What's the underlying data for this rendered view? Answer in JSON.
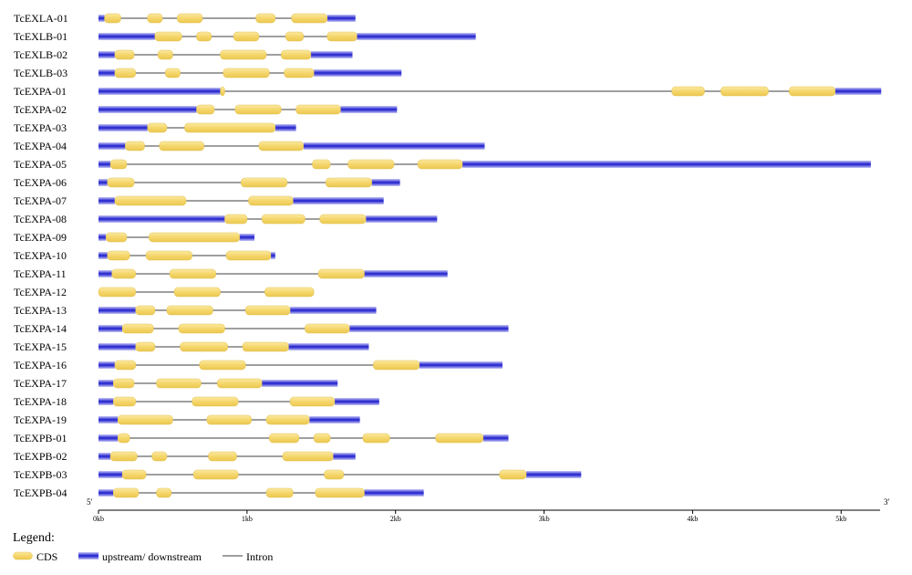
{
  "axis": {
    "five_prime": "5'",
    "three_prime": "3'",
    "max_kb": 5.25,
    "ticks": [
      {
        "value": 0,
        "label": "0kb"
      },
      {
        "value": 1,
        "label": "1kb"
      },
      {
        "value": 2,
        "label": "2kb"
      },
      {
        "value": 3,
        "label": "3kb"
      },
      {
        "value": 4,
        "label": "4kb"
      },
      {
        "value": 5,
        "label": "5kb"
      }
    ]
  },
  "colors": {
    "cds": "#f5d66b",
    "cds_edge": "#e3c24e",
    "utr_dark": "#2a2ad0",
    "utr_light": "#c8c8f7",
    "intron": "#666666"
  },
  "genes": [
    {
      "name": "TcEXLA-01",
      "length": 1.73,
      "cds": [
        [
          0.04,
          0.15
        ],
        [
          0.33,
          0.43
        ],
        [
          0.53,
          0.7
        ],
        [
          1.06,
          1.19
        ],
        [
          1.3,
          1.54
        ]
      ]
    },
    {
      "name": "TcEXLB-01",
      "length": 2.54,
      "cds": [
        [
          0.38,
          0.56
        ],
        [
          0.66,
          0.76
        ],
        [
          0.91,
          1.08
        ],
        [
          1.26,
          1.38
        ],
        [
          1.54,
          1.74
        ]
      ]
    },
    {
      "name": "TcEXLB-02",
      "length": 1.71,
      "cds": [
        [
          0.11,
          0.24
        ],
        [
          0.4,
          0.5
        ],
        [
          0.82,
          1.13
        ],
        [
          1.23,
          1.43
        ]
      ]
    },
    {
      "name": "TcEXLB-03",
      "length": 2.04,
      "cds": [
        [
          0.11,
          0.25
        ],
        [
          0.45,
          0.55
        ],
        [
          0.84,
          1.15
        ],
        [
          1.25,
          1.45
        ]
      ]
    },
    {
      "name": "TcEXPA-01",
      "length": 5.27,
      "cds": [
        [
          0.82,
          0.85
        ],
        [
          3.86,
          4.08
        ],
        [
          4.19,
          4.51
        ],
        [
          4.65,
          4.96
        ]
      ]
    },
    {
      "name": "TcEXPA-02",
      "length": 2.01,
      "cds": [
        [
          0.66,
          0.78
        ],
        [
          0.92,
          1.23
        ],
        [
          1.33,
          1.63
        ]
      ]
    },
    {
      "name": "TcEXPA-03",
      "length": 1.33,
      "cds": [
        [
          0.33,
          0.46
        ],
        [
          0.58,
          1.19
        ]
      ]
    },
    {
      "name": "TcEXPA-04",
      "length": 2.6,
      "cds": [
        [
          0.18,
          0.31
        ],
        [
          0.41,
          0.71
        ],
        [
          1.08,
          1.38
        ]
      ]
    },
    {
      "name": "TcEXPA-05",
      "length": 5.2,
      "cds": [
        [
          0.08,
          0.19
        ],
        [
          1.44,
          1.56
        ],
        [
          1.68,
          1.99
        ],
        [
          2.15,
          2.45
        ]
      ]
    },
    {
      "name": "TcEXPA-06",
      "length": 2.03,
      "cds": [
        [
          0.06,
          0.24
        ],
        [
          0.96,
          1.27
        ],
        [
          1.53,
          1.84
        ]
      ]
    },
    {
      "name": "TcEXPA-07",
      "length": 1.92,
      "cds": [
        [
          0.11,
          0.59
        ],
        [
          1.01,
          1.31
        ]
      ]
    },
    {
      "name": "TcEXPA-08",
      "length": 2.28,
      "cds": [
        [
          0.85,
          1.0
        ],
        [
          1.1,
          1.39
        ],
        [
          1.49,
          1.8
        ]
      ]
    },
    {
      "name": "TcEXPA-09",
      "length": 1.05,
      "cds": [
        [
          0.05,
          0.19
        ],
        [
          0.34,
          0.95
        ]
      ]
    },
    {
      "name": "TcEXPA-10",
      "length": 1.19,
      "cds": [
        [
          0.06,
          0.21
        ],
        [
          0.32,
          0.63
        ],
        [
          0.86,
          1.16
        ]
      ]
    },
    {
      "name": "TcEXPA-11",
      "length": 2.35,
      "cds": [
        [
          0.09,
          0.25
        ],
        [
          0.48,
          0.79
        ],
        [
          1.48,
          1.79
        ]
      ]
    },
    {
      "name": "TcEXPA-12",
      "length": 1.45,
      "cds": [
        [
          0.0,
          0.25
        ],
        [
          0.51,
          0.82
        ],
        [
          1.12,
          1.45
        ]
      ]
    },
    {
      "name": "TcEXPA-13",
      "length": 1.87,
      "cds": [
        [
          0.25,
          0.38
        ],
        [
          0.46,
          0.77
        ],
        [
          0.99,
          1.29
        ]
      ]
    },
    {
      "name": "TcEXPA-14",
      "length": 2.76,
      "cds": [
        [
          0.16,
          0.37
        ],
        [
          0.54,
          0.85
        ],
        [
          1.39,
          1.69
        ]
      ]
    },
    {
      "name": "TcEXPA-15",
      "length": 1.82,
      "cds": [
        [
          0.25,
          0.38
        ],
        [
          0.55,
          0.87
        ],
        [
          0.97,
          1.28
        ]
      ]
    },
    {
      "name": "TcEXPA-16",
      "length": 2.72,
      "cds": [
        [
          0.11,
          0.25
        ],
        [
          0.68,
          0.99
        ],
        [
          1.85,
          2.16
        ]
      ]
    },
    {
      "name": "TcEXPA-17",
      "length": 1.61,
      "cds": [
        [
          0.1,
          0.24
        ],
        [
          0.39,
          0.69
        ],
        [
          0.8,
          1.1
        ]
      ]
    },
    {
      "name": "TcEXPA-18",
      "length": 1.89,
      "cds": [
        [
          0.1,
          0.25
        ],
        [
          0.63,
          0.94
        ],
        [
          1.29,
          1.59
        ]
      ]
    },
    {
      "name": "TcEXPA-19",
      "length": 1.76,
      "cds": [
        [
          0.13,
          0.5
        ],
        [
          0.73,
          1.03
        ],
        [
          1.13,
          1.42
        ]
      ]
    },
    {
      "name": "TcEXPB-01",
      "length": 2.76,
      "cds": [
        [
          0.13,
          0.21
        ],
        [
          1.15,
          1.35
        ],
        [
          1.45,
          1.56
        ],
        [
          1.78,
          1.96
        ],
        [
          2.27,
          2.59
        ]
      ]
    },
    {
      "name": "TcEXPB-02",
      "length": 1.73,
      "cds": [
        [
          0.08,
          0.26
        ],
        [
          0.36,
          0.46
        ],
        [
          0.74,
          0.93
        ],
        [
          1.24,
          1.58
        ]
      ]
    },
    {
      "name": "TcEXPB-03",
      "length": 3.25,
      "cds": [
        [
          0.16,
          0.32
        ],
        [
          0.64,
          0.94
        ],
        [
          1.52,
          1.65
        ],
        [
          2.7,
          2.88
        ]
      ]
    },
    {
      "name": "TcEXPB-04",
      "length": 2.19,
      "cds": [
        [
          0.1,
          0.27
        ],
        [
          0.39,
          0.49
        ],
        [
          1.13,
          1.31
        ],
        [
          1.46,
          1.79
        ]
      ]
    }
  ],
  "legend": {
    "title": "Legend:",
    "cds_label": "CDS",
    "utr_label": "upstream/ downstream",
    "intron_label": "Intron"
  }
}
